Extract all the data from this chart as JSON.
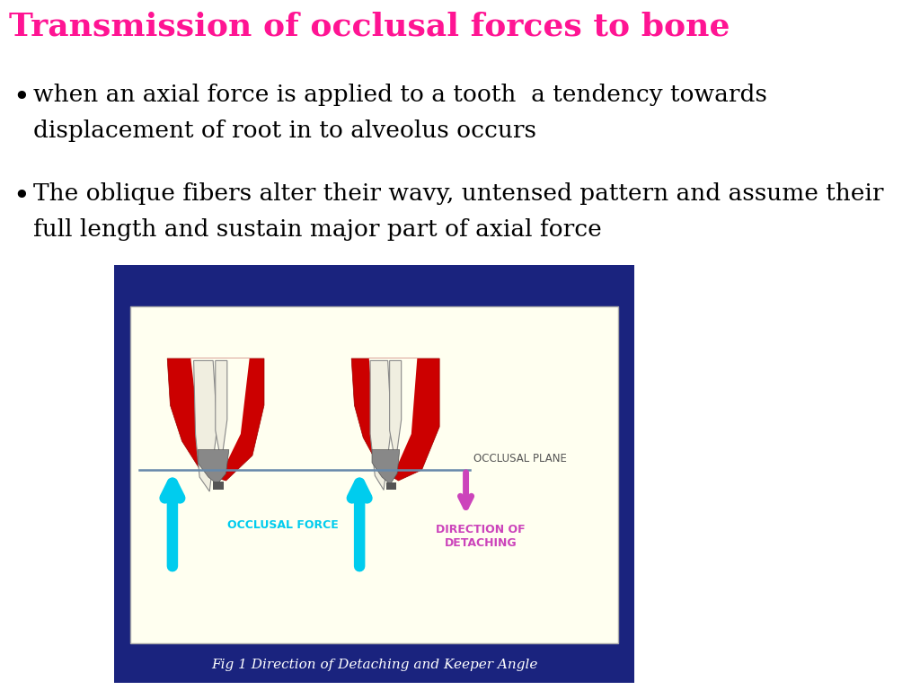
{
  "title": "Transmission of occlusal forces to bone",
  "title_color": "#FF1493",
  "title_fontsize": 26,
  "title_font": "serif",
  "bg_color": "#FFFFFF",
  "bullet1_line1": "when an axial force is applied to a tooth  a tendency towards",
  "bullet1_line2": "displacement of root in to alveolus occurs",
  "bullet2_line1": "The oblique fibers alter their wavy, untensed pattern and assume their",
  "bullet2_line2": "full length and sustain major part of axial force",
  "bullet_fontsize": 19,
  "bullet_color": "#000000",
  "outer_box_color": "#1a237e",
  "inner_box_color": "#FFFFF0",
  "fig_caption": "Fig 1 Direction of Detaching and Keeper Angle",
  "fig_caption_color": "#FFFFFF",
  "occlusal_plane_label": "OCCLUSAL PLANE",
  "occlusal_force_label": "OCCLUSAL FORCE",
  "direction_label": "DIRECTION OF\nDETACHING",
  "label_color_cyan": "#00CCEE",
  "label_color_magenta": "#CC44BB",
  "arrow_up_color": "#00CCEE",
  "arrow_down_color": "#CC44BB",
  "line_color": "#6688AA",
  "gum_color": "#CC0000",
  "gum_edge_color": "#990000",
  "root_color": "#F0EEE0",
  "root_edge_color": "#888888",
  "metal_color": "#888888",
  "metal_dark": "#555555"
}
